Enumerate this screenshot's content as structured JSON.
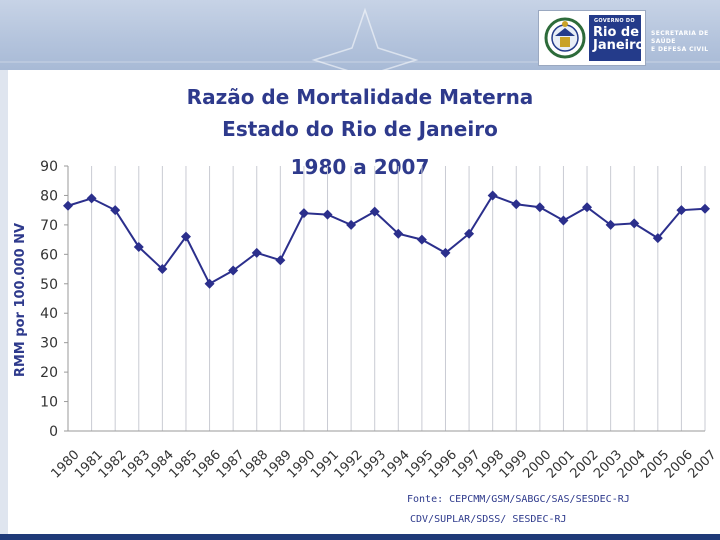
{
  "header": {
    "logo_gov_label": "GOVERNO DO",
    "logo_state_line1": "Rio de",
    "logo_state_line2": "Janeiro",
    "secretaria": [
      "SECRETARIA DE",
      "SAÚDE",
      "E DEFESA CIVIL"
    ],
    "colors": {
      "brand_blue": "#243b8a",
      "title_blue": "#2e3a8c",
      "series": "#2b2f8c"
    }
  },
  "chart_data": {
    "type": "line",
    "title": "Razão de Mortalidade Materna",
    "subtitle": "Estado do Rio de Janeiro",
    "period": "1980 a 2007",
    "xlabel": "",
    "ylabel": "RMM por 100.000 NV",
    "ylim": [
      0,
      90
    ],
    "yticks": [
      "0",
      "10",
      "20",
      "30",
      "40",
      "50",
      "60",
      "70",
      "80",
      "90"
    ],
    "grid": "vertical",
    "categories": [
      "1980",
      "1981",
      "1982",
      "1983",
      "1984",
      "1985",
      "1986",
      "1987",
      "1988",
      "1989",
      "1990",
      "1991",
      "1992",
      "1993",
      "1994",
      "1995",
      "1996",
      "1997",
      "1998",
      "1999",
      "2000",
      "2001",
      "2002",
      "2003",
      "2004",
      "2005",
      "2006",
      "2007"
    ],
    "series": [
      {
        "name": "RMM",
        "values": [
          76.5,
          79,
          75,
          62.5,
          55,
          66,
          50,
          54.5,
          60.5,
          58,
          74,
          73.5,
          70,
          74.5,
          67,
          65,
          60.5,
          67,
          80,
          77,
          76,
          71.5,
          76,
          70,
          70.5,
          65.5,
          75,
          75.5
        ]
      }
    ]
  },
  "source": {
    "line1": "Fonte: CEPCMM/GSM/SABGC/SAS/SESDEC-RJ",
    "line2": "CDV/SUPLAR/SDSS/ SESDEC-RJ"
  }
}
